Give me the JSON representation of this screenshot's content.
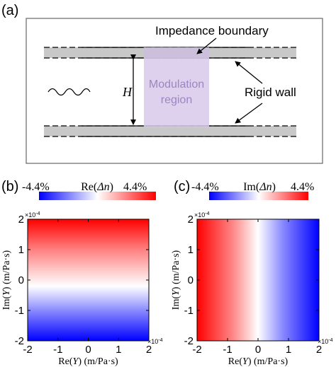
{
  "panels": {
    "a": {
      "label": "(a)",
      "impedance_boundary": "Impedance boundary",
      "modulation_region_line1": "Modulation",
      "modulation_region_line2": "region",
      "rigid_wall": "Rigid wall",
      "height_symbol": "H",
      "colors": {
        "wall": "#c8c8c8",
        "modulation": "#d8c9ea",
        "modulation_text": "#9b86c2"
      }
    },
    "b": {
      "label": "(b)",
      "colorbar": {
        "min_label": "-4.4%",
        "max_label": "4.4%",
        "title_prefix": "Re(",
        "title_var": "Δn",
        "title_suffix": ")"
      },
      "gradient_direction": "vertical"
    },
    "c": {
      "label": "(c)",
      "colorbar": {
        "min_label": "-4.4%",
        "max_label": "4.4%",
        "title_prefix": "Im(",
        "title_var": "Δn",
        "title_suffix": ")"
      },
      "gradient_direction": "horizontal"
    }
  },
  "axes": {
    "x_ticks": [
      "-2",
      "-1",
      "0",
      "1",
      "2"
    ],
    "y_ticks": [
      "2",
      "1",
      "0",
      "-1",
      "-2"
    ],
    "x_label_prefix": "Re(",
    "x_label_var": "Y",
    "x_label_suffix": ") (m/Pa·s)",
    "y_label_prefix": "Im(",
    "y_label_var": "Y",
    "y_label_suffix": ") (m/Pa·s)",
    "multiplier": "×10",
    "multiplier_exp": "-4"
  },
  "colormap": {
    "negative": "#0000ff",
    "zero": "#ffffff",
    "positive": "#ff0000"
  }
}
